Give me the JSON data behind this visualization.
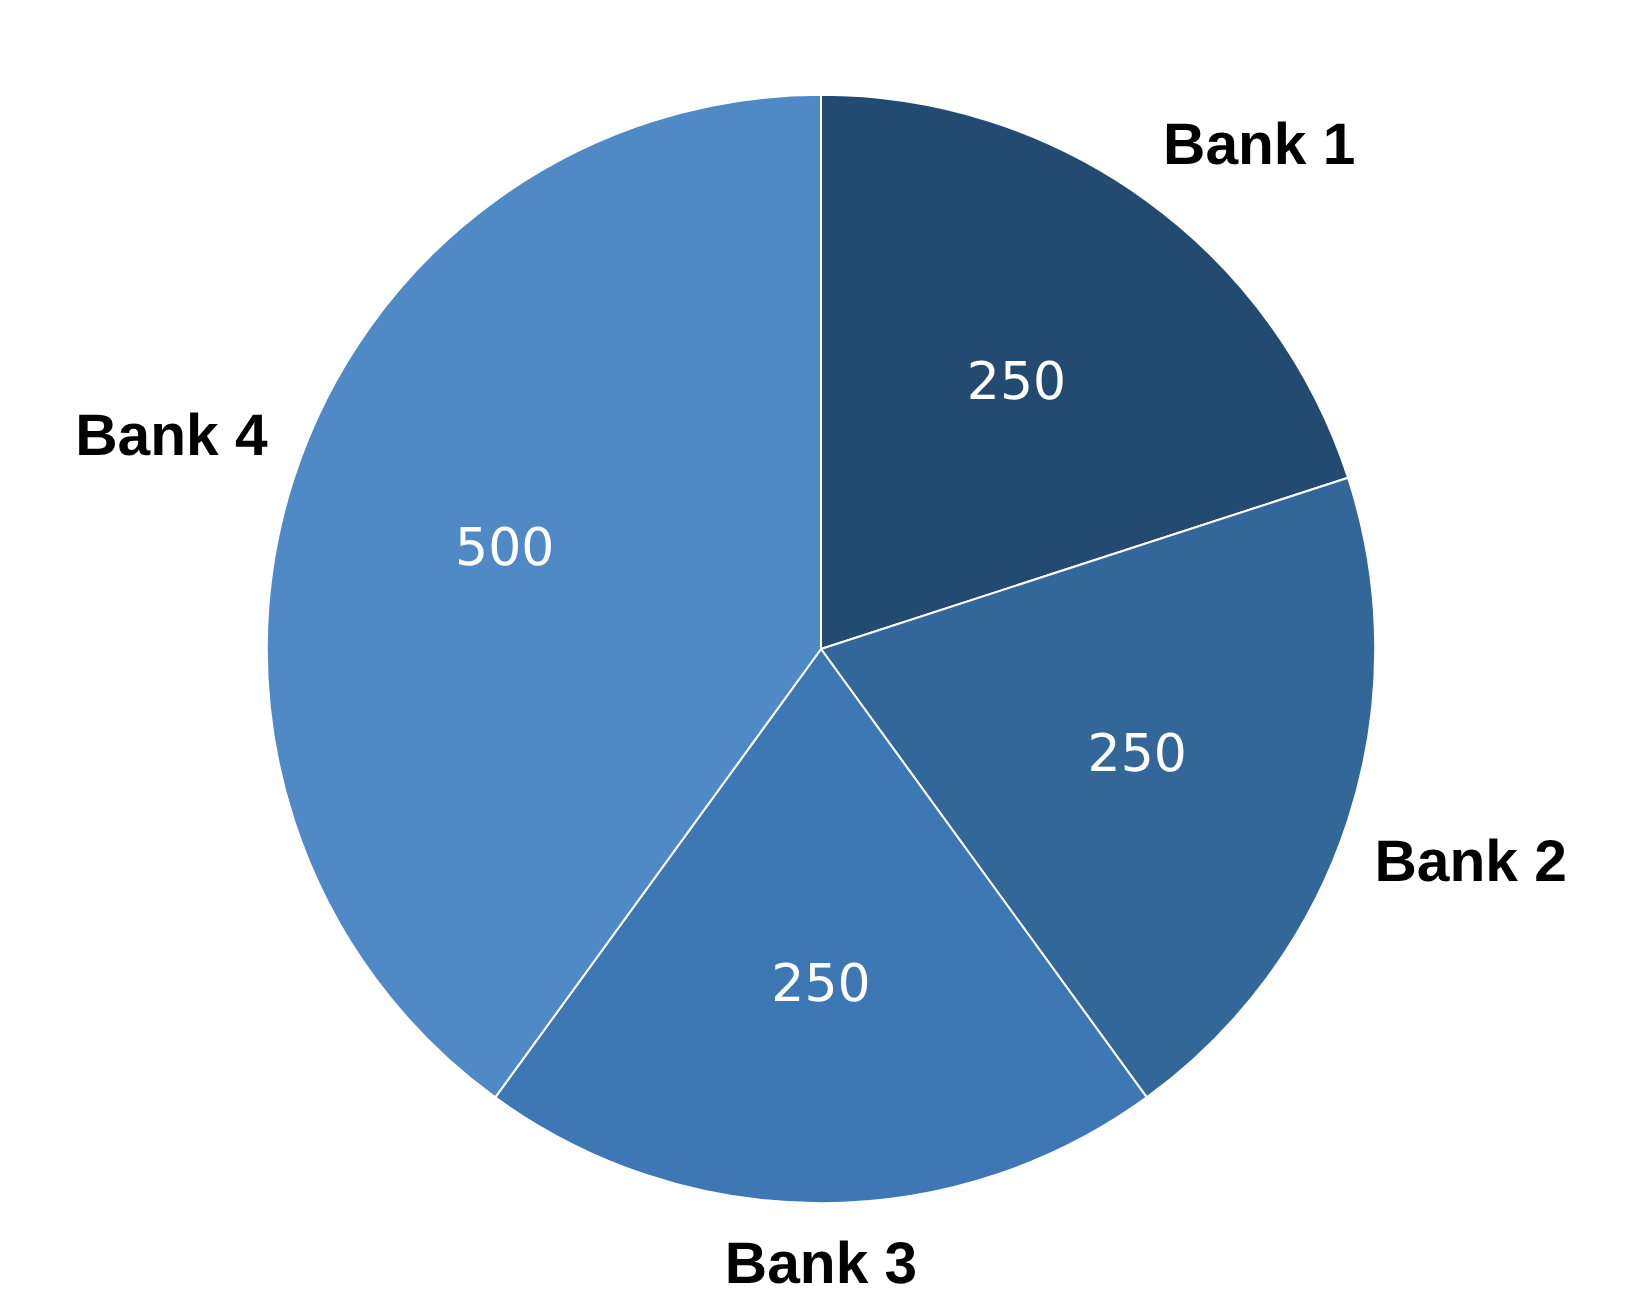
{
  "chart_data": {
    "type": "pie",
    "categories": [
      "Bank 1",
      "Bank 2",
      "Bank 3",
      "Bank 4"
    ],
    "values": [
      250,
      250,
      250,
      500
    ],
    "colors": [
      "#234a70",
      "#336699",
      "#3d78b5",
      "#4f8ac6"
    ],
    "data_labels": true
  }
}
